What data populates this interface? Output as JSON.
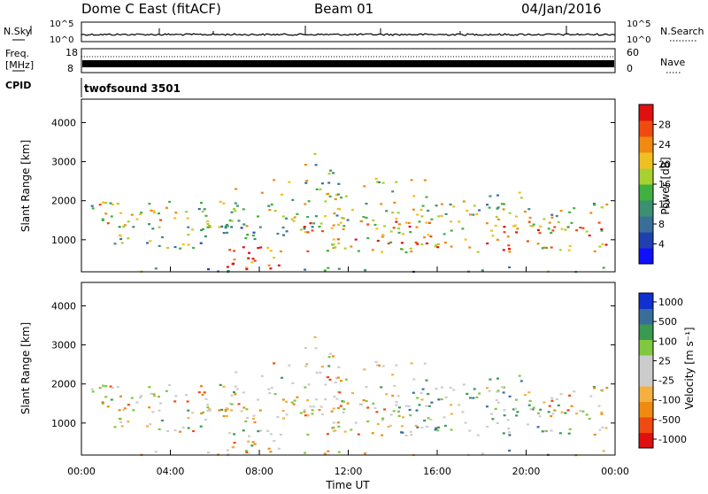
{
  "header": {
    "station": "Dome C East (fitACF)",
    "beam": "Beam 01",
    "date": "04/Jan/2016"
  },
  "strip_labels": {
    "nsky": "N.Sky",
    "nsearch": "N.Search",
    "freq_line1": "Freq.",
    "freq_line2": "[MHz]",
    "nave": "Nave",
    "cpid_label": "CPID",
    "cpid_value": "twofsound 3501",
    "noise_ticks_left": [
      "10^5",
      "10^0"
    ],
    "noise_ticks_right": [
      "10^5",
      "10^0"
    ],
    "freq_ticks": [
      "18",
      "8"
    ],
    "nave_ticks": [
      "60",
      "0"
    ]
  },
  "colors": {
    "power_scale": [
      "#1010ff",
      "#2040b0",
      "#3a6e9a",
      "#3a9070",
      "#40b040",
      "#a8d030",
      "#f0c020",
      "#f08a10",
      "#f04a10",
      "#e01010"
    ],
    "velocity_scale": [
      "#e01010",
      "#f04a10",
      "#f08a10",
      "#f4b040",
      "#cccccc",
      "#cccccc",
      "#80c840",
      "#3a9a50",
      "#3a6e9a",
      "#1030d0"
    ]
  },
  "chart_data": [
    {
      "type": "heatmap",
      "name": "power",
      "ylabel": "Slant Range [km]",
      "ylim": [
        180,
        4600
      ],
      "yticks": [
        "1000",
        "2000",
        "3000",
        "4000"
      ],
      "xlim": [
        0,
        24
      ],
      "colorbar_label": "Power [dB]",
      "colorbar_ticks": [
        "4",
        "8",
        "12",
        "16",
        "20",
        "24",
        "28"
      ],
      "colorbar_range": [
        0,
        30
      ]
    },
    {
      "type": "heatmap",
      "name": "velocity",
      "ylabel": "Slant Range [km]",
      "ylim": [
        180,
        4600
      ],
      "yticks": [
        "1000",
        "2000",
        "3000",
        "4000"
      ],
      "xlabel": "Time UT",
      "xticks": [
        "00:00",
        "04:00",
        "08:00",
        "12:00",
        "16:00",
        "20:00",
        "00:00"
      ],
      "xlim": [
        0,
        24
      ],
      "colorbar_label": "Velocity [m s⁻¹]",
      "colorbar_ticks": [
        "1000",
        "500",
        "100",
        "25",
        "-25",
        "-100",
        "-500",
        "-1000"
      ]
    }
  ]
}
